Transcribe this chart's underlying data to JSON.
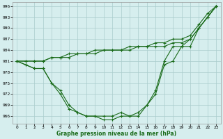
{
  "x": [
    0,
    1,
    2,
    3,
    4,
    5,
    6,
    7,
    8,
    9,
    10,
    11,
    12,
    13,
    14,
    15,
    16,
    17,
    18,
    19,
    20,
    21,
    22,
    23
  ],
  "ylim": [
    964,
    997
  ],
  "yticks": [
    966,
    969,
    972,
    975,
    978,
    981,
    984,
    987,
    990,
    993,
    996
  ],
  "xticks": [
    0,
    1,
    2,
    3,
    4,
    5,
    6,
    7,
    8,
    9,
    10,
    11,
    12,
    13,
    14,
    15,
    16,
    17,
    18,
    19,
    20,
    21,
    22,
    23
  ],
  "line_color": "#1a6b1a",
  "bg_color": "#d6eeee",
  "grid_color": "#aacccc",
  "xlabel": "Graphe pression niveau de la mer (hPa)",
  "series": {
    "curve1": [
      981,
      980,
      979,
      979,
      975,
      972,
      968,
      967,
      966,
      966,
      966,
      966,
      967,
      966,
      967,
      969,
      972,
      980,
      981,
      985,
      987,
      990,
      993,
      996
    ],
    "curve2": [
      981,
      980,
      979,
      979,
      975,
      973,
      969,
      967,
      966,
      966,
      965,
      965,
      966,
      966,
      966,
      969,
      973,
      981,
      985,
      985,
      985,
      990,
      993,
      996
    ],
    "line_upper1": [
      981,
      981,
      981,
      981,
      982,
      982,
      983,
      983,
      983,
      984,
      984,
      984,
      984,
      985,
      985,
      985,
      986,
      986,
      987,
      987,
      988,
      991,
      994,
      996
    ],
    "line_upper2": [
      981,
      981,
      981,
      981,
      982,
      982,
      982,
      983,
      983,
      983,
      984,
      984,
      984,
      984,
      985,
      985,
      985,
      985,
      986,
      986,
      987,
      990,
      993,
      996
    ]
  }
}
